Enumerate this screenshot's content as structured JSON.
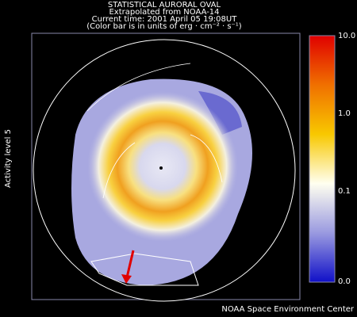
{
  "header": {
    "title": "STATISTICAL AURORAL OVAL",
    "source": "Extrapolated from NOAA-14",
    "time": "Current time: 2001 April 05 19:08UT",
    "units": "(Color bar is in units of erg · cm⁻² · s⁻¹)"
  },
  "side_label": "Activity level 5",
  "colorbar": {
    "labels": [
      "10.0",
      "1.0",
      "0.1",
      "0.0"
    ]
  },
  "footer": "NOAA Space Environment Center"
}
